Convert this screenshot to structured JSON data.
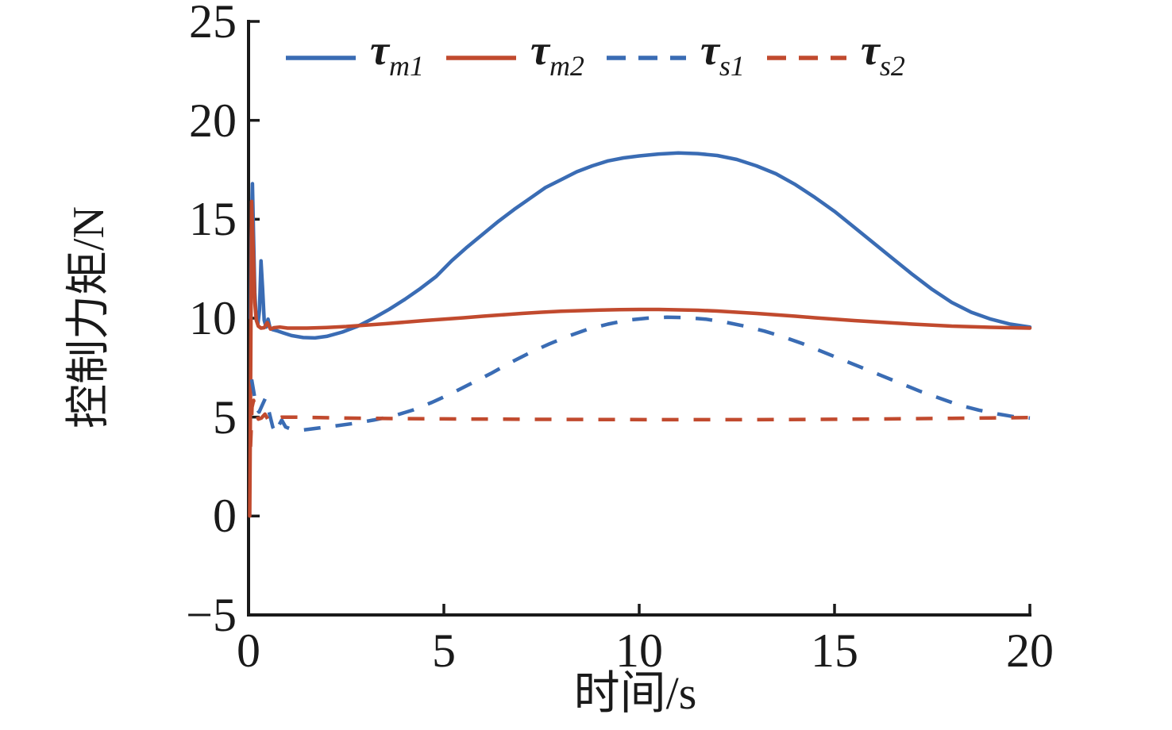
{
  "figure": {
    "background": "#ffffff",
    "text_color": "#1a1a1a"
  },
  "axes": {
    "xlabel": "时间/s",
    "ylabel": "控制力矩/N",
    "xlim": [
      0,
      20
    ],
    "ylim": [
      -5,
      25
    ],
    "x_ticks": [
      0,
      5,
      10,
      15,
      20
    ],
    "y_ticks": [
      25,
      20,
      15,
      10,
      5,
      0,
      -5
    ],
    "grid": false,
    "spines": "left-bottom-only",
    "tick_direction": "in"
  },
  "legend": {
    "position": "top-inside",
    "items": [
      {
        "symbol": "τ",
        "sub": "m1",
        "color": "#3A6CB4",
        "dashed": false
      },
      {
        "symbol": "τ",
        "sub": "m2",
        "color": "#C14A2E",
        "dashed": false
      },
      {
        "symbol": "τ",
        "sub": "s1",
        "color": "#3A6CB4",
        "dashed": true
      },
      {
        "symbol": "τ",
        "sub": "s2",
        "color": "#C14A2E",
        "dashed": true
      }
    ]
  },
  "chart_data": {
    "type": "line",
    "title": "",
    "xlabel": "时间/s",
    "ylabel": "控制力矩/N",
    "xlim": [
      0,
      20
    ],
    "ylim": [
      -5,
      25
    ],
    "legend_position": "top",
    "series": [
      {
        "name": "τ_m1",
        "color": "#3A6CB4",
        "dashed": false,
        "points": [
          [
            0.05,
            10
          ],
          [
            0.07,
            14
          ],
          [
            0.1,
            16.8
          ],
          [
            0.13,
            14
          ],
          [
            0.16,
            11.3
          ],
          [
            0.2,
            9.9
          ],
          [
            0.24,
            9.7
          ],
          [
            0.28,
            10.4
          ],
          [
            0.32,
            12.9
          ],
          [
            0.36,
            11.5
          ],
          [
            0.4,
            9.9
          ],
          [
            0.45,
            9.55
          ],
          [
            0.5,
            9.95
          ],
          [
            0.55,
            9.5
          ],
          [
            0.62,
            9.42
          ],
          [
            0.75,
            9.35
          ],
          [
            0.9,
            9.25
          ],
          [
            1.1,
            9.12
          ],
          [
            1.4,
            9.02
          ],
          [
            1.7,
            9.0
          ],
          [
            2.0,
            9.08
          ],
          [
            2.4,
            9.3
          ],
          [
            2.8,
            9.6
          ],
          [
            3.2,
            10.0
          ],
          [
            3.6,
            10.45
          ],
          [
            4.0,
            10.95
          ],
          [
            4.4,
            11.5
          ],
          [
            4.8,
            12.1
          ],
          [
            5.2,
            12.9
          ],
          [
            5.6,
            13.6
          ],
          [
            6.0,
            14.25
          ],
          [
            6.4,
            14.9
          ],
          [
            6.8,
            15.5
          ],
          [
            7.2,
            16.05
          ],
          [
            7.6,
            16.6
          ],
          [
            8.0,
            17.0
          ],
          [
            8.4,
            17.4
          ],
          [
            8.8,
            17.7
          ],
          [
            9.2,
            17.95
          ],
          [
            9.6,
            18.1
          ],
          [
            10.0,
            18.2
          ],
          [
            10.5,
            18.3
          ],
          [
            11.0,
            18.35
          ],
          [
            11.5,
            18.32
          ],
          [
            12.0,
            18.22
          ],
          [
            12.5,
            18.02
          ],
          [
            13.0,
            17.7
          ],
          [
            13.5,
            17.3
          ],
          [
            14.0,
            16.75
          ],
          [
            14.5,
            16.1
          ],
          [
            15.0,
            15.4
          ],
          [
            15.5,
            14.6
          ],
          [
            16.0,
            13.8
          ],
          [
            16.5,
            13.0
          ],
          [
            17.0,
            12.2
          ],
          [
            17.5,
            11.45
          ],
          [
            18.0,
            10.8
          ],
          [
            18.5,
            10.3
          ],
          [
            19.0,
            9.95
          ],
          [
            19.5,
            9.7
          ],
          [
            20.0,
            9.55
          ]
        ]
      },
      {
        "name": "τ_m2",
        "color": "#C14A2E",
        "dashed": false,
        "points": [
          [
            0.03,
            0
          ],
          [
            0.05,
            6
          ],
          [
            0.08,
            15.9
          ],
          [
            0.12,
            13.5
          ],
          [
            0.16,
            10.8
          ],
          [
            0.2,
            9.9
          ],
          [
            0.25,
            9.6
          ],
          [
            0.32,
            9.5
          ],
          [
            0.4,
            9.52
          ],
          [
            0.48,
            9.78
          ],
          [
            0.56,
            9.45
          ],
          [
            0.65,
            9.52
          ],
          [
            0.8,
            9.55
          ],
          [
            1.0,
            9.5
          ],
          [
            1.5,
            9.5
          ],
          [
            2.0,
            9.53
          ],
          [
            2.5,
            9.58
          ],
          [
            3.0,
            9.65
          ],
          [
            3.5,
            9.72
          ],
          [
            4.0,
            9.8
          ],
          [
            4.5,
            9.88
          ],
          [
            5.0,
            9.95
          ],
          [
            5.5,
            10.02
          ],
          [
            6.0,
            10.1
          ],
          [
            6.5,
            10.17
          ],
          [
            7.0,
            10.24
          ],
          [
            7.5,
            10.3
          ],
          [
            8.0,
            10.35
          ],
          [
            8.5,
            10.38
          ],
          [
            9.0,
            10.41
          ],
          [
            9.5,
            10.43
          ],
          [
            10.0,
            10.44
          ],
          [
            10.5,
            10.44
          ],
          [
            11.0,
            10.42
          ],
          [
            11.5,
            10.4
          ],
          [
            12.0,
            10.36
          ],
          [
            12.5,
            10.3
          ],
          [
            13.0,
            10.24
          ],
          [
            13.5,
            10.17
          ],
          [
            14.0,
            10.1
          ],
          [
            14.5,
            10.02
          ],
          [
            15.0,
            9.95
          ],
          [
            15.5,
            9.88
          ],
          [
            16.0,
            9.82
          ],
          [
            16.5,
            9.76
          ],
          [
            17.0,
            9.7
          ],
          [
            17.5,
            9.65
          ],
          [
            18.0,
            9.6
          ],
          [
            18.5,
            9.57
          ],
          [
            19.0,
            9.54
          ],
          [
            19.5,
            9.52
          ],
          [
            20.0,
            9.5
          ]
        ]
      },
      {
        "name": "τ_s1",
        "color": "#3A6CB4",
        "dashed": true,
        "points": [
          [
            0.08,
            6.9
          ],
          [
            0.14,
            6.2
          ],
          [
            0.2,
            5.45
          ],
          [
            0.27,
            5.25
          ],
          [
            0.35,
            5.6
          ],
          [
            0.43,
            5.95
          ],
          [
            0.52,
            5.3
          ],
          [
            0.62,
            4.5
          ],
          [
            0.7,
            4.18
          ],
          [
            0.78,
            4.6
          ],
          [
            0.85,
            4.85
          ],
          [
            0.95,
            4.5
          ],
          [
            1.1,
            4.38
          ],
          [
            1.4,
            4.35
          ],
          [
            1.8,
            4.45
          ],
          [
            2.2,
            4.55
          ],
          [
            2.7,
            4.68
          ],
          [
            3.2,
            4.85
          ],
          [
            3.7,
            5.05
          ],
          [
            4.2,
            5.35
          ],
          [
            4.7,
            5.75
          ],
          [
            5.2,
            6.2
          ],
          [
            5.7,
            6.7
          ],
          [
            6.2,
            7.2
          ],
          [
            6.7,
            7.75
          ],
          [
            7.2,
            8.25
          ],
          [
            7.7,
            8.7
          ],
          [
            8.2,
            9.1
          ],
          [
            8.7,
            9.45
          ],
          [
            9.2,
            9.7
          ],
          [
            9.7,
            9.9
          ],
          [
            10.2,
            10.0
          ],
          [
            10.7,
            10.05
          ],
          [
            11.2,
            10.03
          ],
          [
            11.7,
            9.95
          ],
          [
            12.2,
            9.8
          ],
          [
            12.7,
            9.6
          ],
          [
            13.2,
            9.35
          ],
          [
            13.7,
            9.05
          ],
          [
            14.2,
            8.7
          ],
          [
            14.7,
            8.3
          ],
          [
            15.2,
            7.9
          ],
          [
            15.7,
            7.5
          ],
          [
            16.2,
            7.1
          ],
          [
            16.7,
            6.7
          ],
          [
            17.2,
            6.3
          ],
          [
            17.7,
            5.95
          ],
          [
            18.2,
            5.6
          ],
          [
            18.7,
            5.35
          ],
          [
            19.2,
            5.15
          ],
          [
            19.6,
            5.02
          ],
          [
            20.0,
            4.95
          ]
        ]
      },
      {
        "name": "τ_s2",
        "color": "#C14A2E",
        "dashed": true,
        "points": [
          [
            0.05,
            3.5
          ],
          [
            0.09,
            5.5
          ],
          [
            0.13,
            5.85
          ],
          [
            0.18,
            5.3
          ],
          [
            0.25,
            4.9
          ],
          [
            0.33,
            4.95
          ],
          [
            0.42,
            5.15
          ],
          [
            0.52,
            4.8
          ],
          [
            0.65,
            4.9
          ],
          [
            0.85,
            5.0
          ],
          [
            1.2,
            5.0
          ],
          [
            1.8,
            4.98
          ],
          [
            2.5,
            4.95
          ],
          [
            3.5,
            4.93
          ],
          [
            5.0,
            4.91
          ],
          [
            7.0,
            4.89
          ],
          [
            9.0,
            4.88
          ],
          [
            11.0,
            4.87
          ],
          [
            13.0,
            4.87
          ],
          [
            15.0,
            4.89
          ],
          [
            16.5,
            4.91
          ],
          [
            18.0,
            4.94
          ],
          [
            19.0,
            4.96
          ],
          [
            20.0,
            4.98
          ]
        ]
      }
    ]
  }
}
